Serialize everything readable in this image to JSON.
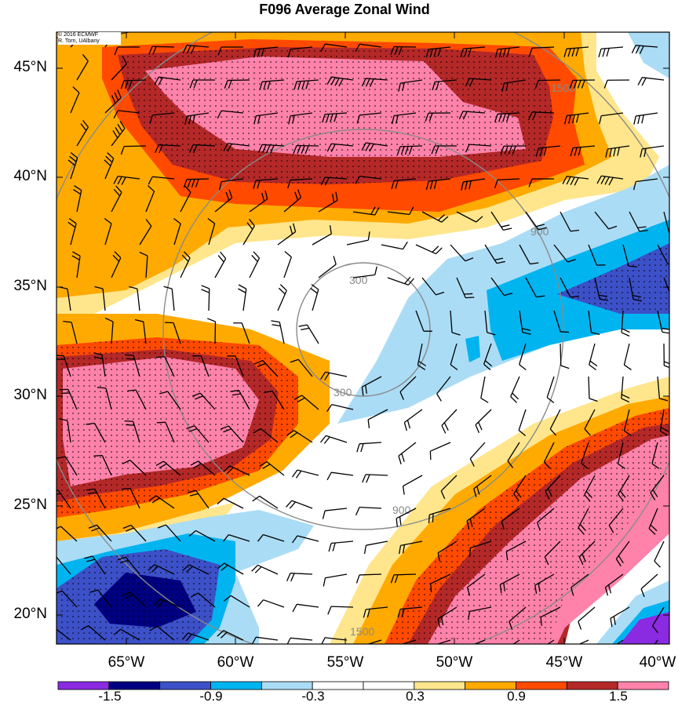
{
  "title": "F096 Average Zonal Wind",
  "credit": {
    "line1": "© 2016 ECMWF",
    "line2": "R. Torn, UAlbany"
  },
  "latitude_labels": [
    "45°N",
    "40°N",
    "35°N",
    "30°N",
    "25°N",
    "20°N"
  ],
  "longitude_labels": [
    "65°W",
    "60°W",
    "55°W",
    "50°W",
    "45°W",
    "40°W"
  ],
  "map_extent": {
    "lon_min": -68,
    "lon_max": -40,
    "lat_min": 18.6,
    "lat_max": 46.5
  },
  "range_rings": {
    "center": {
      "lon": -53.8,
      "lat": 32.7
    },
    "labels": [
      "300",
      "900",
      "1500"
    ],
    "color": "#8a8a8a"
  },
  "colorbar": {
    "tick_labels": [
      "-1.5",
      "-0.9",
      "-0.3",
      "0.3",
      "0.9",
      "1.5"
    ],
    "colors": [
      "#8a2be2",
      "#000080",
      "#3c50c8",
      "#00b4f0",
      "#aadcf5",
      "#ffffff",
      "#ffffff",
      "#ffe68c",
      "#ffaa00",
      "#ff4a00",
      "#b42828",
      "#ff82aa"
    ]
  },
  "contour_colors": {
    "pink": "#ff82aa",
    "darkred": "#b42828",
    "red": "#ff4a00",
    "orange": "#ffaa00",
    "yellow": "#ffe68c",
    "lightblue": "#aadcf5",
    "cyan": "#00b4f0",
    "blue": "#3c50c8",
    "navy": "#000080",
    "purple": "#8a2be2"
  }
}
